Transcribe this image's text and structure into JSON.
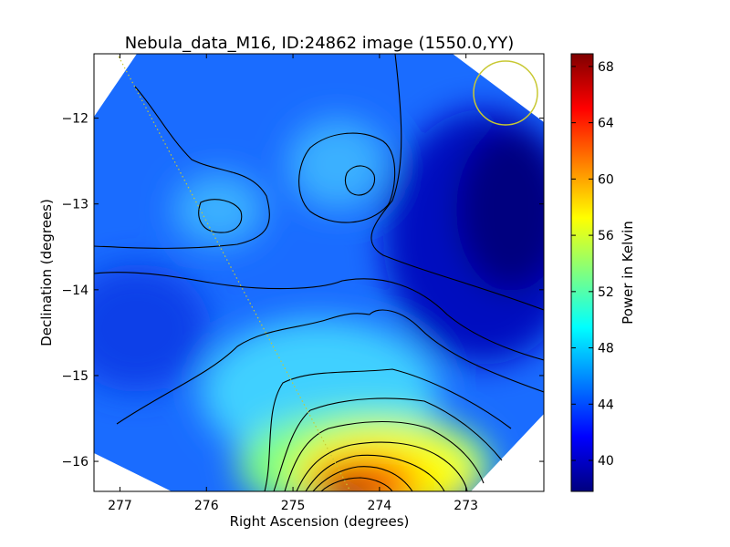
{
  "chart_data": {
    "type": "heatmap",
    "title": "Nebula_data_M16, ID:24862 image (1550.0,YY)",
    "xlabel": "Right Ascension (degrees)",
    "ylabel": "Declination (degrees)",
    "colorbar_label": "Power in Kelvin",
    "x_inverted": true,
    "xlim": [
      277.3,
      272.1
    ],
    "ylim": [
      -16.35,
      -11.25
    ],
    "xticks": [
      277,
      276,
      275,
      274,
      273
    ],
    "xtick_labels": [
      "277",
      "276",
      "275",
      "274",
      "273"
    ],
    "yticks": [
      -12,
      -13,
      -14,
      -15,
      -16
    ],
    "ytick_labels": [
      "−12",
      "−13",
      "−14",
      "−15",
      "−16"
    ],
    "color_range": [
      37.8,
      68.9
    ],
    "colorbar_ticks": [
      40,
      44,
      48,
      52,
      56,
      60,
      64,
      68
    ],
    "colorbar_tick_labels": [
      "40",
      "44",
      "48",
      "52",
      "56",
      "60",
      "64",
      "68"
    ],
    "colormap": "jet",
    "grid": false,
    "features": [
      {
        "label": "hot source",
        "ra": 274.3,
        "dec": -16.35,
        "peak": 68.5
      },
      {
        "label": "warm blob",
        "ra": 275.85,
        "dec": -13.15,
        "peak": 47.5
      },
      {
        "label": "warm blob",
        "ra": 274.3,
        "dec": -12.8,
        "peak": 48.0
      },
      {
        "label": "cold region",
        "ra": 272.4,
        "dec": -13.2,
        "min": 38.5
      }
    ],
    "beam_circle": {
      "ra": 272.5,
      "dec": -11.7,
      "color": "#c8c832"
    },
    "galactic_plane_line": {
      "from": [
        276.95,
        -11.3
      ],
      "to": [
        274.2,
        -16.35
      ],
      "color": "#c8c832"
    }
  }
}
